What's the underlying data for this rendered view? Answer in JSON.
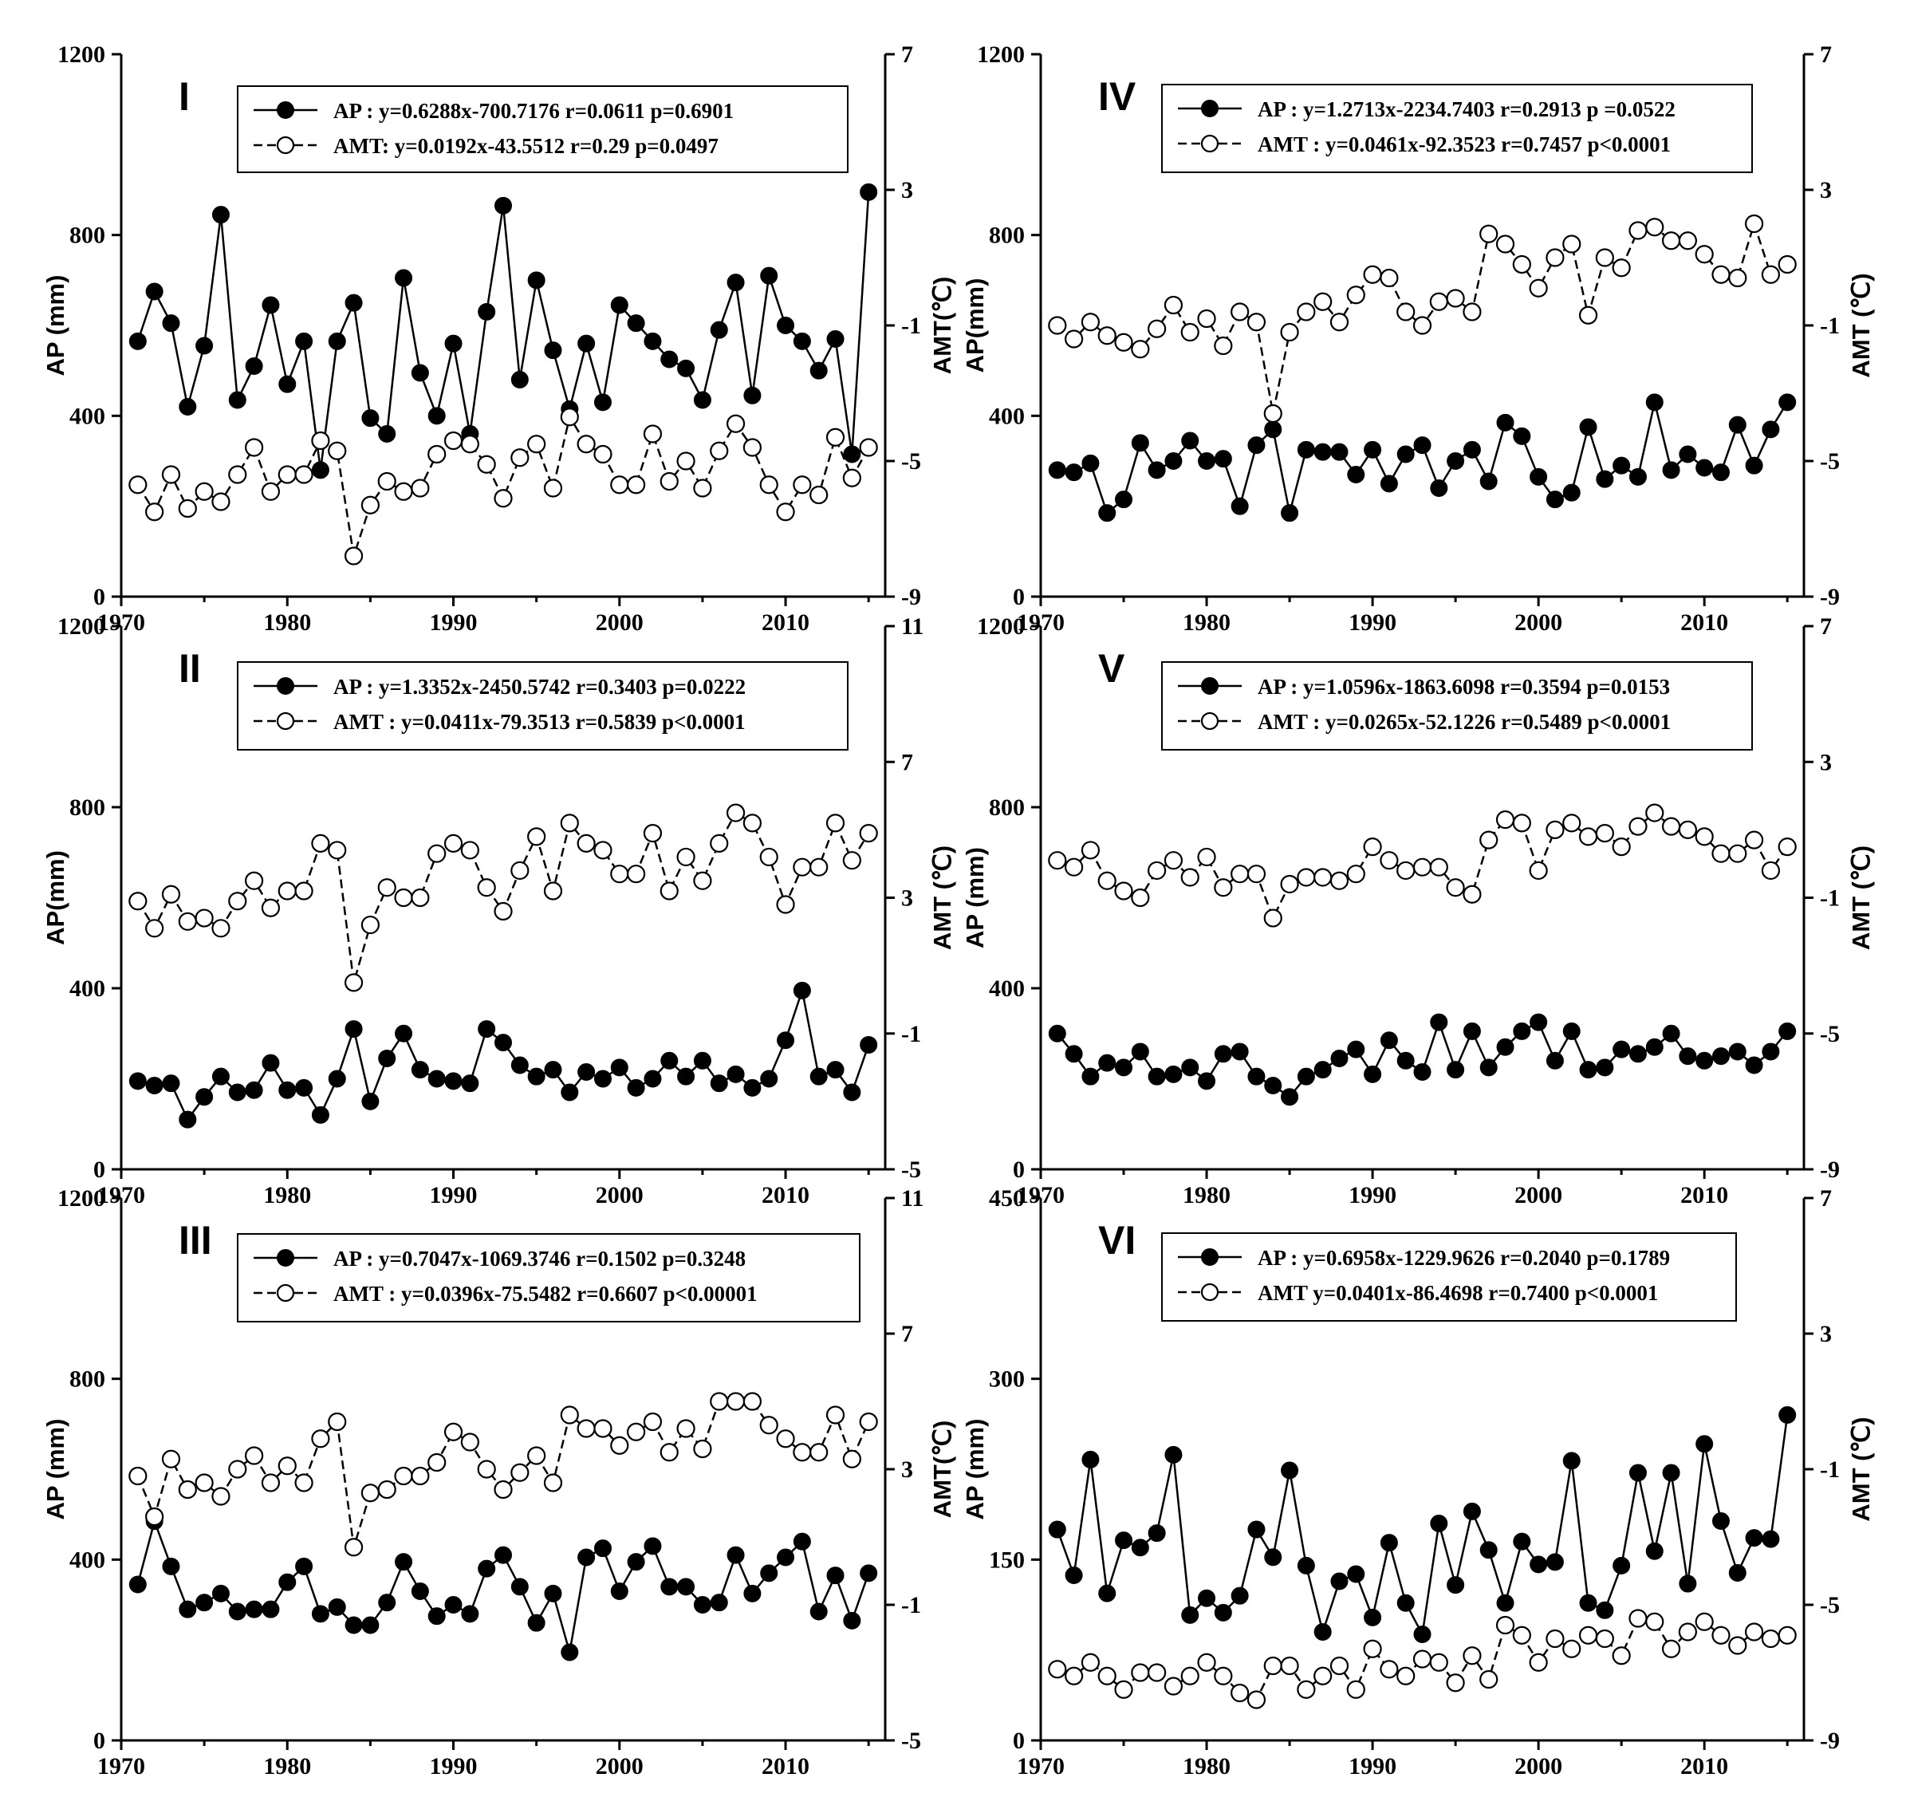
{
  "chart_data": [
    {
      "type": "line",
      "panel_label": "I",
      "x": [
        1971,
        1972,
        1973,
        1974,
        1975,
        1976,
        1977,
        1978,
        1979,
        1980,
        1981,
        1982,
        1983,
        1984,
        1985,
        1986,
        1987,
        1988,
        1989,
        1990,
        1991,
        1992,
        1993,
        1994,
        1995,
        1996,
        1997,
        1998,
        1999,
        2000,
        2001,
        2002,
        2003,
        2004,
        2005,
        2006,
        2007,
        2008,
        2009,
        2010,
        2011,
        2012,
        2013,
        2014,
        2015
      ],
      "xlim": [
        1970,
        2016
      ],
      "xticks": [
        "1970",
        "1980",
        "1990",
        "2000",
        "2010"
      ],
      "ylabel": "AP (mm)",
      "ylim": [
        0,
        1200
      ],
      "yticks": [
        "0",
        "400",
        "800",
        "1200"
      ],
      "y2label": "AMT(℃)",
      "y2lim": [
        -9,
        7
      ],
      "y2ticks": [
        "-9",
        "-5",
        "-1",
        "3",
        "7"
      ],
      "series": [
        {
          "name": "AP",
          "axis": "left",
          "values": [
            565,
            675,
            605,
            420,
            555,
            845,
            435,
            510,
            645,
            470,
            565,
            280,
            565,
            650,
            395,
            360,
            705,
            495,
            400,
            560,
            360,
            630,
            865,
            480,
            700,
            545,
            415,
            560,
            430,
            645,
            605,
            565,
            525,
            505,
            435,
            590,
            695,
            445,
            710,
            600,
            565,
            500,
            570,
            315,
            895
          ]
        },
        {
          "name": "AMT",
          "axis": "right",
          "values": [
            -5.7,
            -6.5,
            -5.4,
            -6.4,
            -5.9,
            -6.2,
            -5.4,
            -4.6,
            -5.9,
            -5.4,
            -5.4,
            -4.4,
            -4.7,
            -7.8,
            -6.3,
            -5.6,
            -5.9,
            -5.8,
            -4.8,
            -4.4,
            -4.5,
            -5.1,
            -6.1,
            -4.9,
            -4.5,
            -5.8,
            -3.7,
            -4.5,
            -4.8,
            -5.7,
            -5.7,
            -4.2,
            -5.6,
            -5.0,
            -5.8,
            -4.7,
            -3.9,
            -4.6,
            -5.7,
            -6.5,
            -5.7,
            -6.0,
            -4.3,
            -5.5,
            -4.6
          ]
        }
      ],
      "legend": [
        {
          "marker": "filled",
          "text": "AP : y=0.6288x-700.7176  r=0.0611  p=0.6901"
        },
        {
          "marker": "open",
          "text": "AMT: y=0.0192x-43.5512   r=0.29  p=0.0497"
        }
      ]
    },
    {
      "type": "line",
      "panel_label": "IV",
      "x": [
        1971,
        1972,
        1973,
        1974,
        1975,
        1976,
        1977,
        1978,
        1979,
        1980,
        1981,
        1982,
        1983,
        1984,
        1985,
        1986,
        1987,
        1988,
        1989,
        1990,
        1991,
        1992,
        1993,
        1994,
        1995,
        1996,
        1997,
        1998,
        1999,
        2000,
        2001,
        2002,
        2003,
        2004,
        2005,
        2006,
        2007,
        2008,
        2009,
        2010,
        2011,
        2012,
        2013,
        2014,
        2015
      ],
      "xlim": [
        1970,
        2016
      ],
      "xticks": [
        "1970",
        "1980",
        "1990",
        "2000",
        "2010"
      ],
      "ylabel": "AP(mm)",
      "ylim": [
        0,
        1200
      ],
      "yticks": [
        "0",
        "400",
        "800",
        "1200"
      ],
      "y2label": "AMT (℃)",
      "y2lim": [
        -9,
        7
      ],
      "y2ticks": [
        "-9",
        "-5",
        "-1",
        "3",
        "7"
      ],
      "series": [
        {
          "name": "AP",
          "axis": "left",
          "values": [
            280,
            275,
            295,
            185,
            215,
            340,
            280,
            300,
            345,
            300,
            305,
            200,
            335,
            370,
            185,
            325,
            320,
            320,
            270,
            325,
            250,
            315,
            335,
            240,
            300,
            325,
            255,
            385,
            355,
            265,
            215,
            230,
            375,
            260,
            290,
            265,
            430,
            280,
            315,
            285,
            275,
            380,
            290,
            370,
            430
          ]
        },
        {
          "name": "AMT",
          "axis": "right",
          "values": [
            -1.0,
            -1.4,
            -0.9,
            -1.3,
            -1.5,
            -1.7,
            -1.1,
            -0.4,
            -1.2,
            -0.8,
            -1.6,
            -0.6,
            -0.9,
            -3.6,
            -1.2,
            -0.6,
            -0.3,
            -0.9,
            -0.1,
            0.5,
            0.4,
            -0.6,
            -1.0,
            -0.3,
            -0.2,
            -0.6,
            1.7,
            1.4,
            0.8,
            0.1,
            1.0,
            1.4,
            -0.7,
            1.0,
            0.7,
            1.8,
            1.9,
            1.5,
            1.5,
            1.1,
            0.5,
            0.4,
            2.0,
            0.5,
            0.8
          ]
        }
      ],
      "legend": [
        {
          "marker": "filled",
          "text": "AP : y=1.2713x-2234.7403 r=0.2913 p =0.0522"
        },
        {
          "marker": "open",
          "text": "AMT : y=0.0461x-92.3523 r=0.7457 p<0.0001"
        }
      ]
    },
    {
      "type": "line",
      "panel_label": "II",
      "x": [
        1971,
        1972,
        1973,
        1974,
        1975,
        1976,
        1977,
        1978,
        1979,
        1980,
        1981,
        1982,
        1983,
        1984,
        1985,
        1986,
        1987,
        1988,
        1989,
        1990,
        1991,
        1992,
        1993,
        1994,
        1995,
        1996,
        1997,
        1998,
        1999,
        2000,
        2001,
        2002,
        2003,
        2004,
        2005,
        2006,
        2007,
        2008,
        2009,
        2010,
        2011,
        2012,
        2013,
        2014,
        2015
      ],
      "xlim": [
        1970,
        2016
      ],
      "xticks": [
        "1970",
        "1980",
        "1990",
        "2000",
        "2010"
      ],
      "ylabel": "AP(mm)",
      "ylim": [
        0,
        1200
      ],
      "yticks": [
        "0",
        "400",
        "800",
        "1200"
      ],
      "y2label": "AMT (℃)",
      "y2lim": [
        -5,
        11
      ],
      "y2ticks": [
        "-5",
        "-1",
        "3",
        "7",
        "11"
      ],
      "series": [
        {
          "name": "AP",
          "axis": "left",
          "values": [
            195,
            185,
            190,
            110,
            160,
            205,
            170,
            175,
            235,
            175,
            180,
            120,
            200,
            310,
            150,
            245,
            300,
            220,
            200,
            195,
            190,
            310,
            280,
            230,
            205,
            220,
            170,
            215,
            200,
            225,
            180,
            200,
            240,
            205,
            240,
            190,
            210,
            180,
            200,
            285,
            395,
            205,
            220,
            170,
            275
          ]
        },
        {
          "name": "AMT",
          "axis": "right",
          "values": [
            2.9,
            2.1,
            3.1,
            2.3,
            2.4,
            2.1,
            2.9,
            3.5,
            2.7,
            3.2,
            3.2,
            4.6,
            4.4,
            0.5,
            2.2,
            3.3,
            3.0,
            3.0,
            4.3,
            4.6,
            4.4,
            3.3,
            2.6,
            3.8,
            4.8,
            3.2,
            5.2,
            4.6,
            4.4,
            3.7,
            3.7,
            4.9,
            3.2,
            4.2,
            3.5,
            4.6,
            5.5,
            5.2,
            4.2,
            2.8,
            3.9,
            3.9,
            5.2,
            4.1,
            4.9
          ]
        }
      ],
      "legend": [
        {
          "marker": "filled",
          "text": "AP : y=1.3352x-2450.5742 r=0.3403  p=0.0222"
        },
        {
          "marker": "open",
          "text": "AMT : y=0.0411x-79.3513  r=0.5839  p<0.0001"
        }
      ]
    },
    {
      "type": "line",
      "panel_label": "V",
      "x": [
        1971,
        1972,
        1973,
        1974,
        1975,
        1976,
        1977,
        1978,
        1979,
        1980,
        1981,
        1982,
        1983,
        1984,
        1985,
        1986,
        1987,
        1988,
        1989,
        1990,
        1991,
        1992,
        1993,
        1994,
        1995,
        1996,
        1997,
        1998,
        1999,
        2000,
        2001,
        2002,
        2003,
        2004,
        2005,
        2006,
        2007,
        2008,
        2009,
        2010,
        2011,
        2012,
        2013,
        2014,
        2015
      ],
      "xlim": [
        1970,
        2016
      ],
      "xticks": [
        "1970",
        "1980",
        "1990",
        "2000",
        "2010"
      ],
      "ylabel": "AP (mm)",
      "ylim": [
        0,
        1200
      ],
      "yticks": [
        "0",
        "400",
        "800",
        "1200"
      ],
      "y2label": "AMT (℃)",
      "y2lim": [
        -9,
        7
      ],
      "y2ticks": [
        "-9",
        "-5",
        "-1",
        "3",
        "7"
      ],
      "series": [
        {
          "name": "AP",
          "axis": "left",
          "values": [
            300,
            255,
            205,
            235,
            225,
            260,
            205,
            210,
            225,
            195,
            255,
            260,
            205,
            185,
            160,
            205,
            220,
            245,
            265,
            210,
            285,
            240,
            215,
            325,
            220,
            305,
            225,
            270,
            305,
            325,
            240,
            305,
            220,
            225,
            265,
            255,
            270,
            300,
            250,
            240,
            250,
            260,
            230,
            260,
            305
          ]
        },
        {
          "name": "AMT",
          "axis": "right",
          "values": [
            0.1,
            -0.1,
            0.4,
            -0.5,
            -0.8,
            -1.0,
            -0.2,
            0.1,
            -0.4,
            0.2,
            -0.7,
            -0.3,
            -0.3,
            -1.6,
            -0.6,
            -0.4,
            -0.4,
            -0.5,
            -0.3,
            0.5,
            0.1,
            -0.2,
            -0.1,
            -0.1,
            -0.7,
            -0.9,
            0.7,
            1.3,
            1.2,
            -0.2,
            1.0,
            1.2,
            0.8,
            0.9,
            0.5,
            1.1,
            1.5,
            1.1,
            1.0,
            0.8,
            0.3,
            0.3,
            0.7,
            -0.2,
            0.5
          ]
        }
      ],
      "legend": [
        {
          "marker": "filled",
          "text": "AP : y=1.0596x-1863.6098 r=0.3594  p=0.0153"
        },
        {
          "marker": "open",
          "text": "AMT : y=0.0265x-52.1226 r=0.5489  p<0.0001"
        }
      ]
    },
    {
      "type": "line",
      "panel_label": "III",
      "x": [
        1971,
        1972,
        1973,
        1974,
        1975,
        1976,
        1977,
        1978,
        1979,
        1980,
        1981,
        1982,
        1983,
        1984,
        1985,
        1986,
        1987,
        1988,
        1989,
        1990,
        1991,
        1992,
        1993,
        1994,
        1995,
        1996,
        1997,
        1998,
        1999,
        2000,
        2001,
        2002,
        2003,
        2004,
        2005,
        2006,
        2007,
        2008,
        2009,
        2010,
        2011,
        2012,
        2013,
        2014,
        2015
      ],
      "xlim": [
        1970,
        2016
      ],
      "xticks": [
        "1970",
        "1980",
        "1990",
        "2000",
        "2010"
      ],
      "ylabel": "AP (mm)",
      "ylim": [
        0,
        1200
      ],
      "yticks": [
        "0",
        "400",
        "800",
        "1200"
      ],
      "y2label": "AMT(℃)",
      "y2lim": [
        -5,
        11
      ],
      "y2ticks": [
        "-5",
        "-1",
        "3",
        "7",
        "11"
      ],
      "series": [
        {
          "name": "AP",
          "axis": "left",
          "values": [
            345,
            485,
            385,
            290,
            305,
            325,
            285,
            290,
            290,
            350,
            385,
            280,
            295,
            255,
            255,
            305,
            395,
            330,
            275,
            300,
            280,
            380,
            410,
            340,
            260,
            325,
            195,
            405,
            425,
            330,
            395,
            430,
            340,
            340,
            300,
            305,
            410,
            325,
            370,
            405,
            440,
            285,
            365,
            265,
            370
          ]
        },
        {
          "name": "AMT",
          "axis": "right",
          "values": [
            2.8,
            1.6,
            3.3,
            2.4,
            2.6,
            2.2,
            3.0,
            3.4,
            2.6,
            3.1,
            2.6,
            3.9,
            4.4,
            0.7,
            2.3,
            2.4,
            2.8,
            2.8,
            3.2,
            4.1,
            3.8,
            3.0,
            2.4,
            2.9,
            3.4,
            2.6,
            4.6,
            4.2,
            4.2,
            3.7,
            4.1,
            4.4,
            3.5,
            4.2,
            3.6,
            5.0,
            5.0,
            5.0,
            4.3,
            3.9,
            3.5,
            3.5,
            4.6,
            3.3,
            4.4
          ]
        }
      ],
      "legend": [
        {
          "marker": "filled",
          "text": "AP : y=0.7047x-1069.3746 r=0.1502   p=0.3248"
        },
        {
          "marker": "open",
          "text": "AMT : y=0.0396x-75.5482 r=0.6607  p<0.00001"
        }
      ]
    },
    {
      "type": "line",
      "panel_label": "VI",
      "x": [
        1971,
        1972,
        1973,
        1974,
        1975,
        1976,
        1977,
        1978,
        1979,
        1980,
        1981,
        1982,
        1983,
        1984,
        1985,
        1986,
        1987,
        1988,
        1989,
        1990,
        1991,
        1992,
        1993,
        1994,
        1995,
        1996,
        1997,
        1998,
        1999,
        2000,
        2001,
        2002,
        2003,
        2004,
        2005,
        2006,
        2007,
        2008,
        2009,
        2010,
        2011,
        2012,
        2013,
        2014,
        2015
      ],
      "xlim": [
        1970,
        2016
      ],
      "xticks": [
        "1970",
        "1980",
        "1990",
        "2000",
        "2010"
      ],
      "ylabel": "AP (mm)",
      "ylim": [
        0,
        450
      ],
      "yticks": [
        "0",
        "150",
        "300",
        "450"
      ],
      "y2label": "AMT (℃)",
      "y2lim": [
        -9,
        7
      ],
      "y2ticks": [
        "-9",
        "-5",
        "-1",
        "3",
        "7"
      ],
      "series": [
        {
          "name": "AP",
          "axis": "left",
          "values": [
            175,
            137,
            233,
            122,
            166,
            160,
            172,
            237,
            104,
            118,
            106,
            120,
            175,
            152,
            224,
            145,
            90,
            132,
            138,
            102,
            164,
            114,
            88,
            180,
            129,
            190,
            158,
            114,
            165,
            146,
            148,
            232,
            114,
            108,
            145,
            222,
            157,
            222,
            130,
            246,
            182,
            139,
            168,
            167,
            270
          ]
        },
        {
          "name": "AMT",
          "axis": "right",
          "values": [
            -6.9,
            -7.1,
            -6.7,
            -7.1,
            -7.5,
            -7.0,
            -7.0,
            -7.4,
            -7.1,
            -6.7,
            -7.1,
            -7.6,
            -7.8,
            -6.8,
            -6.8,
            -7.5,
            -7.1,
            -6.8,
            -7.5,
            -6.3,
            -6.9,
            -7.1,
            -6.6,
            -6.7,
            -7.3,
            -6.5,
            -7.2,
            -5.6,
            -5.9,
            -6.7,
            -6.0,
            -6.3,
            -5.9,
            -6.0,
            -6.5,
            -5.4,
            -5.5,
            -6.3,
            -5.8,
            -5.5,
            -5.9,
            -6.2,
            -5.8,
            -6.0,
            -5.9
          ]
        }
      ],
      "legend": [
        {
          "marker": "filled",
          "text": "AP : y=0.6958x-1229.9626 r=0.2040 p=0.1789"
        },
        {
          "marker": "open",
          "text": "AMT y=0.0401x-86.4698 r=0.7400 p<0.0001"
        }
      ]
    }
  ]
}
